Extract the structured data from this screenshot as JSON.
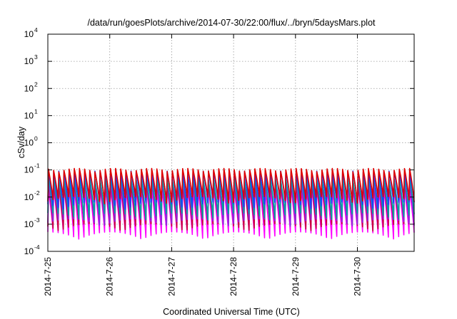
{
  "chart_data": {
    "type": "line",
    "title": "/data/run/goesPlots/archive/2014-07-30/22:00/flux/../bryn/5daysMars.plot",
    "xlabel": "Coordinated Universal Time (UTC)",
    "ylabel": "cSv/day",
    "yscale": "log",
    "ylim": [
      0.0001,
      10000
    ],
    "xlim": [
      "2014-07-25 00:00",
      "2014-07-30 22:00"
    ],
    "grid": true,
    "y_ticks": [
      {
        "base": "10",
        "exp": "-4",
        "value": 0.0001
      },
      {
        "base": "10",
        "exp": "-3",
        "value": 0.001
      },
      {
        "base": "10",
        "exp": "-2",
        "value": 0.01
      },
      {
        "base": "10",
        "exp": "-1",
        "value": 0.1
      },
      {
        "base": "10",
        "exp": "0",
        "value": 1
      },
      {
        "base": "10",
        "exp": "1",
        "value": 10
      },
      {
        "base": "10",
        "exp": "2",
        "value": 100
      },
      {
        "base": "10",
        "exp": "3",
        "value": 1000
      },
      {
        "base": "10",
        "exp": "4",
        "value": 10000
      }
    ],
    "x_ticks": [
      "2014-7-25",
      "2014-7-26",
      "2014-7-27",
      "2014-7-28",
      "2014-7-29",
      "2014-7-30"
    ],
    "oscillation": {
      "cycles_per_day": 12,
      "description_value_range": [
        0.0004,
        0.1
      ]
    },
    "series": [
      {
        "color": "#ff00ff",
        "peak": 0.02,
        "trough": 0.0004
      },
      {
        "color": "#c8003c",
        "peak": 0.03,
        "trough": 0.0008
      },
      {
        "color": "#8a2be2",
        "peak": 0.04,
        "trough": 0.0012
      },
      {
        "color": "#00a0a0",
        "peak": 0.05,
        "trough": 0.002
      },
      {
        "color": "#1e3cff",
        "peak": 0.08,
        "trough": 0.005
      },
      {
        "color": "#e00000",
        "peak": 0.1,
        "trough": 0.008
      }
    ]
  }
}
